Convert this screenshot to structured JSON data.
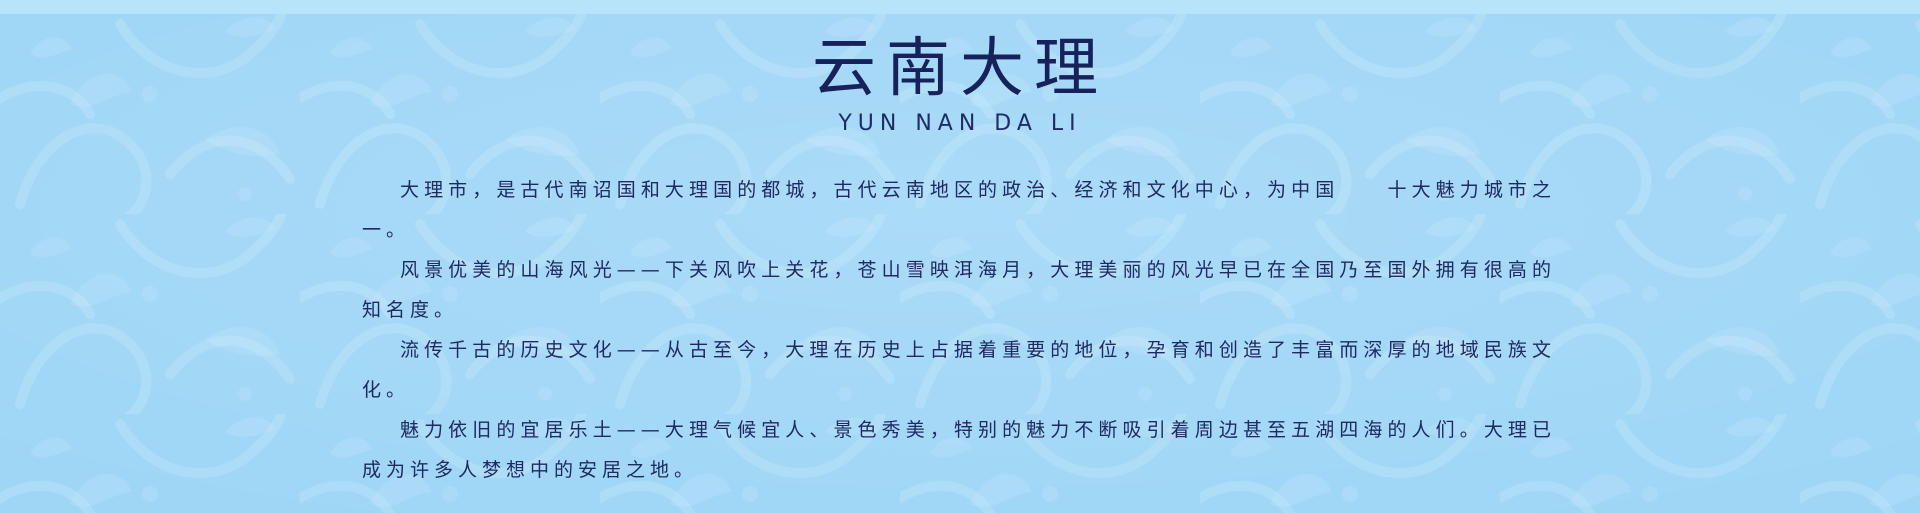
{
  "page": {
    "title": "云南大理",
    "subtitle": "YUN NAN DA LI",
    "paragraphs": [
      "大理市，是古代南诏国和大理国的都城，古代云南地区的政治、经济和文化中心，为中国　　十大魅力城市之一。",
      "风景优美的山海风光——下关风吹上关花，苍山雪映洱海月，大理美丽的风光早已在全国乃至国外拥有很高的知名度。",
      "流传千古的历史文化——从古至今，大理在历史上占据着重要的地位，孕育和创造了丰富而深厚的地域民族文化。",
      "魅力依旧的宜居乐土——大理气候宜人、景色秀美，特别的魅力不断吸引着周边甚至五湖四海的人们。大理已成为许多人梦想中的安居之地。"
    ]
  },
  "colors": {
    "background": "#9fd6f6",
    "top_strip": "#b7e4fb",
    "title": "#17225a",
    "text": "#1f2a60",
    "pattern": "#d9f1ff"
  }
}
